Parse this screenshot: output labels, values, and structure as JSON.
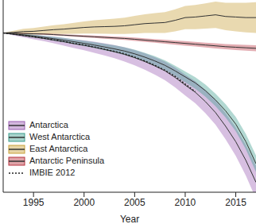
{
  "chart_data": {
    "type": "line",
    "x_label": "Year",
    "legend": "lower left",
    "tick_labels": "x",
    "grid": false,
    "x": [
      1992,
      1993,
      1994,
      1995,
      1996,
      1997,
      1998,
      1999,
      2000,
      2001,
      2002,
      2003,
      2004,
      2005,
      2006,
      2007,
      2008,
      2009,
      2010,
      2011,
      2012,
      2013,
      2014,
      2015,
      2016,
      2017
    ],
    "xlim": [
      1992,
      2017
    ],
    "xticks": [
      1995,
      2000,
      2005,
      2010,
      2015
    ],
    "ylim": [
      -2900,
      600
    ],
    "series": [
      {
        "name": "Antarctica",
        "color": "#9b5fb3",
        "line_style": "solid",
        "values": [
          0,
          -25,
          -50,
          -75,
          -100,
          -130,
          -160,
          -195,
          -225,
          -260,
          -300,
          -340,
          -390,
          -450,
          -520,
          -600,
          -690,
          -810,
          -950,
          -1080,
          -1250,
          -1450,
          -1700,
          -1980,
          -2320,
          -2720
        ],
        "uncertainty": [
          0,
          20,
          30,
          40,
          50,
          60,
          70,
          80,
          90,
          100,
          110,
          120,
          130,
          140,
          150,
          160,
          170,
          180,
          190,
          200,
          210,
          220,
          240,
          260,
          280,
          300
        ]
      },
      {
        "name": "West Antarctica",
        "color": "#3f9e8e",
        "line_style": "solid",
        "values": [
          0,
          -15,
          -35,
          -55,
          -80,
          -105,
          -130,
          -160,
          -190,
          -220,
          -255,
          -290,
          -330,
          -380,
          -440,
          -510,
          -590,
          -690,
          -800,
          -910,
          -1050,
          -1220,
          -1420,
          -1660,
          -1980,
          -2380
        ],
        "uncertainty": [
          0,
          15,
          20,
          25,
          30,
          35,
          40,
          45,
          50,
          55,
          60,
          65,
          70,
          75,
          80,
          85,
          90,
          95,
          100,
          105,
          110,
          115,
          120,
          130,
          140,
          150
        ]
      },
      {
        "name": "East Antarctica",
        "color": "#c9a13a",
        "line_style": "solid",
        "values": [
          0,
          10,
          25,
          30,
          45,
          60,
          70,
          85,
          100,
          110,
          115,
          120,
          130,
          150,
          170,
          180,
          190,
          230,
          280,
          290,
          310,
          330,
          300,
          290,
          280,
          280
        ],
        "uncertainty": [
          0,
          30,
          50,
          60,
          70,
          80,
          90,
          100,
          110,
          120,
          130,
          140,
          150,
          160,
          170,
          180,
          190,
          200,
          210,
          220,
          230,
          240,
          250,
          260,
          270,
          280
        ]
      },
      {
        "name": "Antarctic Peninsula",
        "color": "#b8323f",
        "line_style": "solid",
        "values": [
          0,
          -5,
          -10,
          -15,
          -20,
          -30,
          -40,
          -50,
          -60,
          -70,
          -80,
          -90,
          -100,
          -115,
          -130,
          -145,
          -160,
          -175,
          -190,
          -205,
          -220,
          -235,
          -250,
          -260,
          -270,
          -280
        ],
        "uncertainty": [
          0,
          5,
          8,
          10,
          12,
          14,
          16,
          18,
          20,
          22,
          24,
          26,
          28,
          30,
          32,
          34,
          36,
          38,
          40,
          42,
          44,
          46,
          48,
          50,
          52,
          54
        ]
      },
      {
        "name": "IMBIE 2012",
        "color": "#222222",
        "line_style": "dotted",
        "values": [
          0,
          -20,
          -45,
          -70,
          -95,
          -125,
          -155,
          -190,
          -220,
          -255,
          -295,
          -335,
          -380,
          -440,
          -510,
          -590,
          -680,
          -790,
          -930,
          -1070,
          null,
          null,
          null,
          null,
          null,
          null
        ]
      }
    ]
  }
}
